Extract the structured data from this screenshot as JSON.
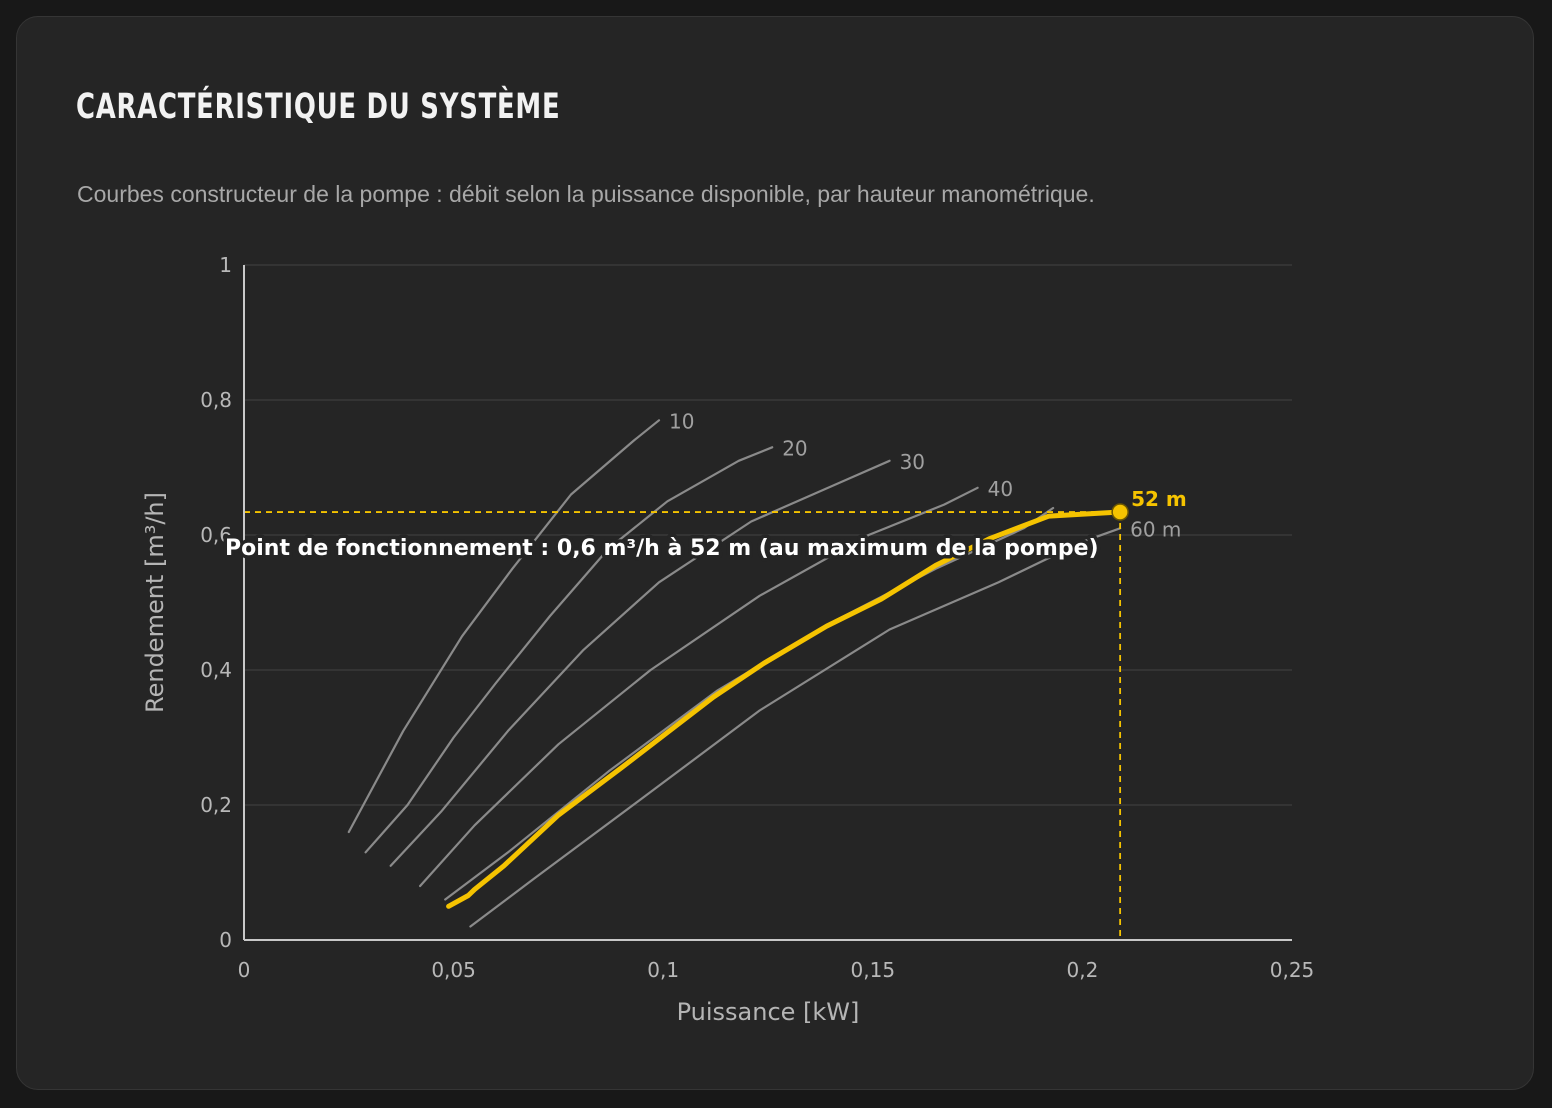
{
  "header": {
    "title": "CARACTÉRISTIQUE DU SYSTÈME",
    "subtitle": "Courbes constructeur de la pompe : débit selon la puissance disponible, par hauteur manométrique."
  },
  "colors": {
    "highlight": "#f5c300",
    "curve": "#8a8a8a",
    "grid": "#3a3a3a",
    "axis": "#c8c8c8"
  },
  "chart_data": {
    "type": "line",
    "xlabel": "Puissance [kW]",
    "ylabel": "Rendement [m³/h]",
    "xlim": [
      0,
      0.25
    ],
    "ylim": [
      0,
      1
    ],
    "xticks": [
      {
        "value": 0,
        "label": "0"
      },
      {
        "value": 0.05,
        "label": "0,05"
      },
      {
        "value": 0.1,
        "label": "0,1"
      },
      {
        "value": 0.15,
        "label": "0,15"
      },
      {
        "value": 0.2,
        "label": "0,2"
      },
      {
        "value": 0.25,
        "label": "0,25"
      }
    ],
    "yticks": [
      {
        "value": 0,
        "label": "0"
      },
      {
        "value": 0.2,
        "label": "0,2"
      },
      {
        "value": 0.4,
        "label": "0,4"
      },
      {
        "value": 0.6,
        "label": "0,6"
      },
      {
        "value": 0.8,
        "label": "0,8"
      },
      {
        "value": 1,
        "label": "1"
      }
    ],
    "grid": true,
    "series": [
      {
        "name": "10",
        "points": [
          [
            0.025,
            0.16
          ],
          [
            0.038,
            0.31
          ],
          [
            0.052,
            0.45
          ],
          [
            0.064,
            0.55
          ],
          [
            0.078,
            0.66
          ],
          [
            0.093,
            0.74
          ],
          [
            0.099,
            0.77
          ]
        ]
      },
      {
        "name": "20",
        "points": [
          [
            0.029,
            0.13
          ],
          [
            0.039,
            0.2
          ],
          [
            0.05,
            0.3
          ],
          [
            0.06,
            0.38
          ],
          [
            0.073,
            0.48
          ],
          [
            0.087,
            0.58
          ],
          [
            0.101,
            0.65
          ],
          [
            0.118,
            0.71
          ],
          [
            0.126,
            0.73
          ]
        ]
      },
      {
        "name": "30",
        "points": [
          [
            0.035,
            0.11
          ],
          [
            0.047,
            0.19
          ],
          [
            0.063,
            0.31
          ],
          [
            0.081,
            0.43
          ],
          [
            0.099,
            0.53
          ],
          [
            0.121,
            0.62
          ],
          [
            0.143,
            0.68
          ],
          [
            0.154,
            0.71
          ]
        ]
      },
      {
        "name": "40",
        "points": [
          [
            0.042,
            0.08
          ],
          [
            0.055,
            0.17
          ],
          [
            0.075,
            0.29
          ],
          [
            0.097,
            0.4
          ],
          [
            0.123,
            0.51
          ],
          [
            0.149,
            0.6
          ],
          [
            0.167,
            0.645
          ],
          [
            0.175,
            0.67
          ]
        ]
      },
      {
        "name": "",
        "points": [
          [
            0.048,
            0.06
          ],
          [
            0.063,
            0.13
          ],
          [
            0.087,
            0.25
          ],
          [
            0.113,
            0.37
          ],
          [
            0.14,
            0.47
          ],
          [
            0.165,
            0.55
          ],
          [
            0.186,
            0.61
          ],
          [
            0.193,
            0.64
          ]
        ]
      },
      {
        "name": "60 m",
        "points": [
          [
            0.054,
            0.02
          ],
          [
            0.069,
            0.09
          ],
          [
            0.095,
            0.21
          ],
          [
            0.123,
            0.34
          ],
          [
            0.154,
            0.46
          ],
          [
            0.18,
            0.53
          ],
          [
            0.2,
            0.59
          ],
          [
            0.209,
            0.61
          ]
        ]
      }
    ],
    "highlight_series": {
      "name": "52 m",
      "points": [
        [
          0.0488,
          0.05
        ],
        [
          0.0535,
          0.066
        ],
        [
          0.055,
          0.075
        ],
        [
          0.062,
          0.11
        ],
        [
          0.075,
          0.185
        ],
        [
          0.09,
          0.255
        ],
        [
          0.112,
          0.36
        ],
        [
          0.124,
          0.41
        ],
        [
          0.139,
          0.465
        ],
        [
          0.152,
          0.505
        ],
        [
          0.165,
          0.555
        ],
        [
          0.178,
          0.595
        ],
        [
          0.192,
          0.628
        ],
        [
          0.209,
          0.634
        ]
      ]
    },
    "operating_point": {
      "x": 0.209,
      "y": 0.634
    },
    "annotation": "Point de fonctionnement : 0,6 m³/h à 52 m (au maximum de la pompe)"
  }
}
